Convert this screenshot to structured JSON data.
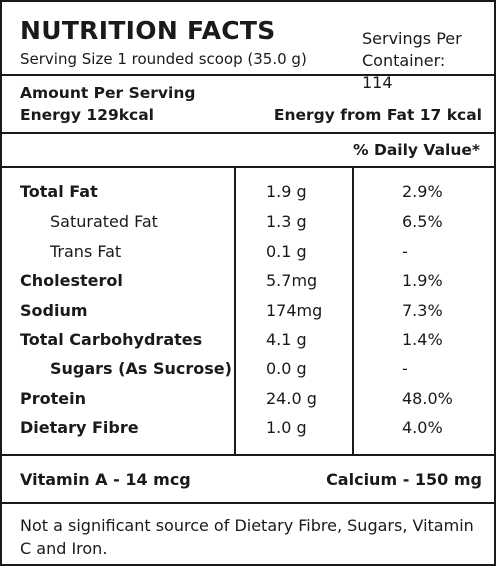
{
  "header": {
    "title": "NUTRITION FACTS",
    "serving_size": "Serving Size 1 rounded scoop (35.0 g)",
    "servings_per_line1": "Servings Per",
    "servings_per_line2": "Container: 114"
  },
  "amount": {
    "label": "Amount Per Serving",
    "energy": "Energy 129kcal",
    "energy_from_fat": "Energy from Fat 17 kcal"
  },
  "daily_value_label": "% Daily Value*",
  "nutrients": [
    {
      "name": "Total Fat",
      "amount": "1.9 g",
      "dv": "2.9%"
    },
    {
      "name": "Saturated Fat",
      "amount": "1.3 g",
      "dv": "6.5%"
    },
    {
      "name": "Trans Fat",
      "amount": "0.1 g",
      "dv": "-"
    },
    {
      "name": "Cholesterol",
      "amount": "5.7mg",
      "dv": "1.9%"
    },
    {
      "name": "Sodium",
      "amount": "174mg",
      "dv": "7.3%"
    },
    {
      "name": "Total Carbohydrates",
      "amount": "4.1 g",
      "dv": "1.4%"
    },
    {
      "name": "Sugars (As Sucrose)",
      "amount": "0.0 g",
      "dv": "-"
    },
    {
      "name": "Protein",
      "amount": "24.0 g",
      "dv": "48.0%"
    },
    {
      "name": "Dietary Fibre",
      "amount": "1.0 g",
      "dv": "4.0%"
    }
  ],
  "vitamins": {
    "vitamin_a": "Vitamin A - 14 mcg",
    "calcium": "Calcium - 150  mg"
  },
  "footnote": "Not a significant source of Dietary Fibre, Sugars, Vitamin C and Iron."
}
